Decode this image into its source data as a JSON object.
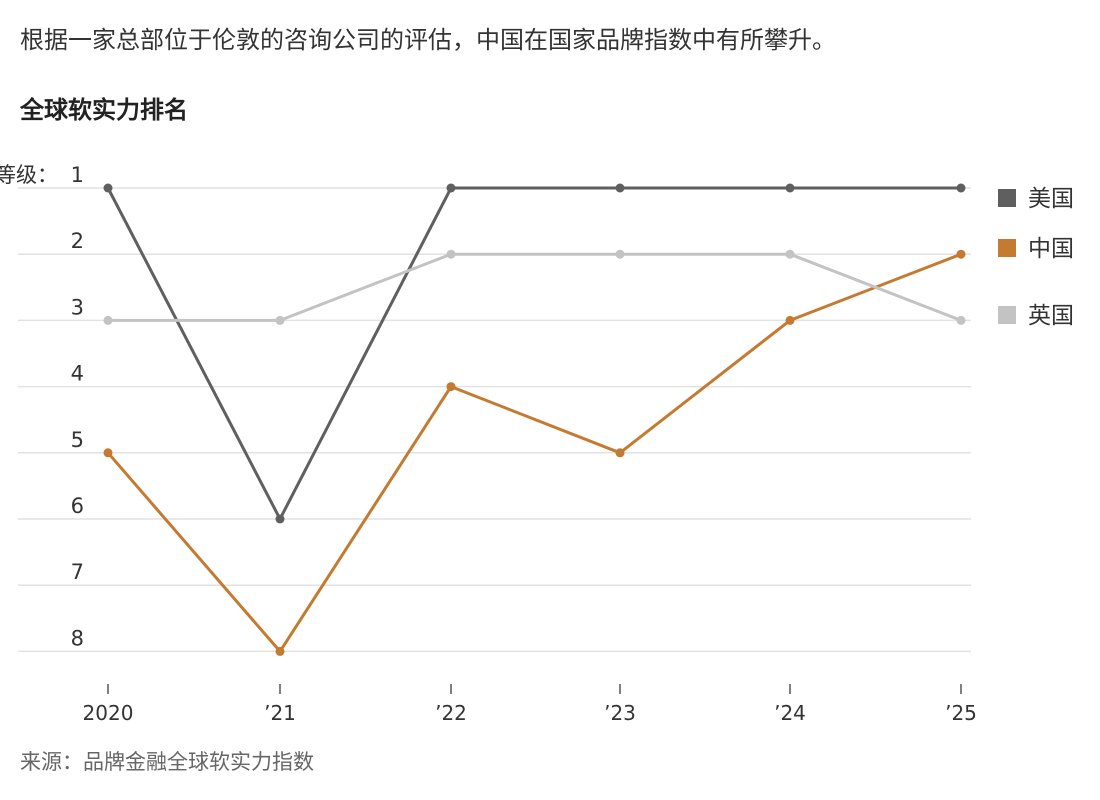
{
  "header": {
    "subtitle": "根据一家总部位于伦敦的咨询公司的评估，中国在国家品牌指数中有所攀升。",
    "title": "全球软实力排名"
  },
  "footer": {
    "source": "来源：品牌金融全球软实力指数"
  },
  "chart_data": {
    "type": "line",
    "title": "全球软实力排名",
    "subtitle": "根据一家总部位于伦敦的咨询公司的评估，中国在国家品牌指数中有所攀升。",
    "ylabel": "等级：",
    "xlabel": "",
    "x": [
      "2020",
      "’21",
      "’22",
      "’23",
      "’24",
      "’25"
    ],
    "y_ticks": [
      "1",
      "2",
      "3",
      "4",
      "5",
      "6",
      "7",
      "8"
    ],
    "ylim": [
      1,
      8
    ],
    "y_inverted": true,
    "grid": true,
    "legend_position": "right",
    "series": [
      {
        "name": "美国",
        "color": "#5f5f5f",
        "values": [
          1,
          6,
          1,
          1,
          1,
          1
        ]
      },
      {
        "name": "中国",
        "color": "#c47a31",
        "values": [
          5,
          8,
          4,
          5,
          3,
          2
        ]
      },
      {
        "name": "英国",
        "color": "#c3c3c3",
        "values": [
          3,
          3,
          2,
          2,
          2,
          3
        ]
      }
    ],
    "source": "来源：品牌金融全球软实力指数"
  }
}
